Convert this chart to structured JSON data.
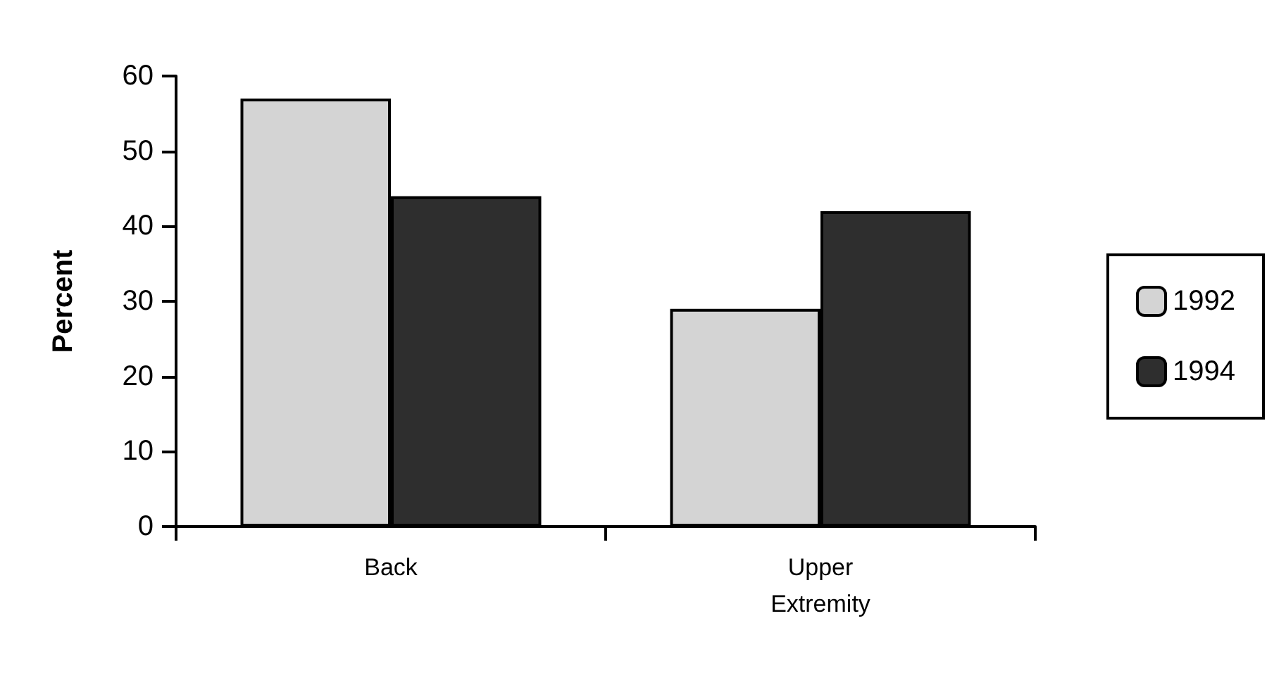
{
  "chart_data": {
    "type": "bar",
    "ylabel": "Percent",
    "categories": [
      "Back",
      "Upper\nExtremity"
    ],
    "series": [
      {
        "name": "1992",
        "color": "#d4d4d4",
        "values": [
          57,
          29
        ]
      },
      {
        "name": "1994",
        "color": "#2e2e2e",
        "values": [
          44,
          42
        ]
      }
    ],
    "ylim": [
      0,
      60
    ],
    "yticks": [
      0,
      10,
      20,
      30,
      40,
      50,
      60
    ],
    "grid": false,
    "legend": "right"
  }
}
